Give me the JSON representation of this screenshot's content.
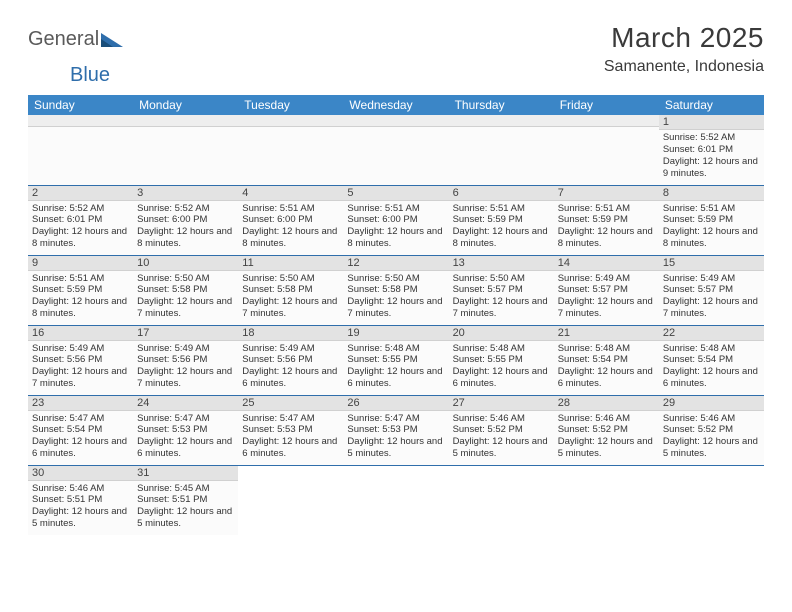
{
  "logo": {
    "text1": "General",
    "text2": "Blue"
  },
  "title": "March 2025",
  "location": "Samanente, Indonesia",
  "colors": {
    "header_bg": "#3b86c7",
    "header_text": "#ffffff",
    "rule": "#2f6eab",
    "daynum_bg": "#e3e3e3",
    "page_bg": "#ffffff"
  },
  "day_headers": [
    "Sunday",
    "Monday",
    "Tuesday",
    "Wednesday",
    "Thursday",
    "Friday",
    "Saturday"
  ],
  "weeks": [
    [
      null,
      null,
      null,
      null,
      null,
      null,
      {
        "n": "1",
        "sr": "5:52 AM",
        "ss": "6:01 PM",
        "dl": "12 hours and 9 minutes."
      }
    ],
    [
      {
        "n": "2",
        "sr": "5:52 AM",
        "ss": "6:01 PM",
        "dl": "12 hours and 8 minutes."
      },
      {
        "n": "3",
        "sr": "5:52 AM",
        "ss": "6:00 PM",
        "dl": "12 hours and 8 minutes."
      },
      {
        "n": "4",
        "sr": "5:51 AM",
        "ss": "6:00 PM",
        "dl": "12 hours and 8 minutes."
      },
      {
        "n": "5",
        "sr": "5:51 AM",
        "ss": "6:00 PM",
        "dl": "12 hours and 8 minutes."
      },
      {
        "n": "6",
        "sr": "5:51 AM",
        "ss": "5:59 PM",
        "dl": "12 hours and 8 minutes."
      },
      {
        "n": "7",
        "sr": "5:51 AM",
        "ss": "5:59 PM",
        "dl": "12 hours and 8 minutes."
      },
      {
        "n": "8",
        "sr": "5:51 AM",
        "ss": "5:59 PM",
        "dl": "12 hours and 8 minutes."
      }
    ],
    [
      {
        "n": "9",
        "sr": "5:51 AM",
        "ss": "5:59 PM",
        "dl": "12 hours and 8 minutes."
      },
      {
        "n": "10",
        "sr": "5:50 AM",
        "ss": "5:58 PM",
        "dl": "12 hours and 7 minutes."
      },
      {
        "n": "11",
        "sr": "5:50 AM",
        "ss": "5:58 PM",
        "dl": "12 hours and 7 minutes."
      },
      {
        "n": "12",
        "sr": "5:50 AM",
        "ss": "5:58 PM",
        "dl": "12 hours and 7 minutes."
      },
      {
        "n": "13",
        "sr": "5:50 AM",
        "ss": "5:57 PM",
        "dl": "12 hours and 7 minutes."
      },
      {
        "n": "14",
        "sr": "5:49 AM",
        "ss": "5:57 PM",
        "dl": "12 hours and 7 minutes."
      },
      {
        "n": "15",
        "sr": "5:49 AM",
        "ss": "5:57 PM",
        "dl": "12 hours and 7 minutes."
      }
    ],
    [
      {
        "n": "16",
        "sr": "5:49 AM",
        "ss": "5:56 PM",
        "dl": "12 hours and 7 minutes."
      },
      {
        "n": "17",
        "sr": "5:49 AM",
        "ss": "5:56 PM",
        "dl": "12 hours and 7 minutes."
      },
      {
        "n": "18",
        "sr": "5:49 AM",
        "ss": "5:56 PM",
        "dl": "12 hours and 6 minutes."
      },
      {
        "n": "19",
        "sr": "5:48 AM",
        "ss": "5:55 PM",
        "dl": "12 hours and 6 minutes."
      },
      {
        "n": "20",
        "sr": "5:48 AM",
        "ss": "5:55 PM",
        "dl": "12 hours and 6 minutes."
      },
      {
        "n": "21",
        "sr": "5:48 AM",
        "ss": "5:54 PM",
        "dl": "12 hours and 6 minutes."
      },
      {
        "n": "22",
        "sr": "5:48 AM",
        "ss": "5:54 PM",
        "dl": "12 hours and 6 minutes."
      }
    ],
    [
      {
        "n": "23",
        "sr": "5:47 AM",
        "ss": "5:54 PM",
        "dl": "12 hours and 6 minutes."
      },
      {
        "n": "24",
        "sr": "5:47 AM",
        "ss": "5:53 PM",
        "dl": "12 hours and 6 minutes."
      },
      {
        "n": "25",
        "sr": "5:47 AM",
        "ss": "5:53 PM",
        "dl": "12 hours and 6 minutes."
      },
      {
        "n": "26",
        "sr": "5:47 AM",
        "ss": "5:53 PM",
        "dl": "12 hours and 5 minutes."
      },
      {
        "n": "27",
        "sr": "5:46 AM",
        "ss": "5:52 PM",
        "dl": "12 hours and 5 minutes."
      },
      {
        "n": "28",
        "sr": "5:46 AM",
        "ss": "5:52 PM",
        "dl": "12 hours and 5 minutes."
      },
      {
        "n": "29",
        "sr": "5:46 AM",
        "ss": "5:52 PM",
        "dl": "12 hours and 5 minutes."
      }
    ],
    [
      {
        "n": "30",
        "sr": "5:46 AM",
        "ss": "5:51 PM",
        "dl": "12 hours and 5 minutes."
      },
      {
        "n": "31",
        "sr": "5:45 AM",
        "ss": "5:51 PM",
        "dl": "12 hours and 5 minutes."
      },
      null,
      null,
      null,
      null,
      null
    ]
  ],
  "labels": {
    "sunrise": "Sunrise:",
    "sunset": "Sunset:",
    "daylight": "Daylight:"
  }
}
